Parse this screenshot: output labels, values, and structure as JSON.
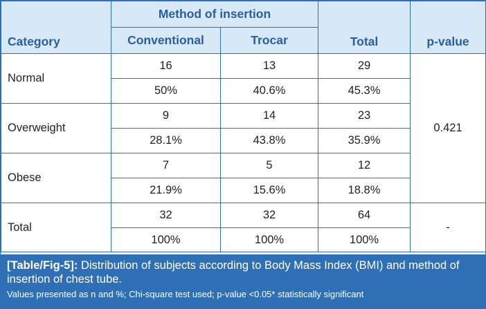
{
  "table": {
    "headers": {
      "category": "Category",
      "method_group": "Method of insertion",
      "conventional": "Conventional",
      "trocar": "Trocar",
      "total": "Total",
      "p_value": "p-value"
    },
    "rows": [
      {
        "category": "Normal",
        "n": [
          "16",
          "13",
          "29"
        ],
        "pct": [
          "50%",
          "40.6%",
          "45.3%"
        ]
      },
      {
        "category": "Overweight",
        "n": [
          "9",
          "14",
          "23"
        ],
        "pct": [
          "28.1%",
          "43.8%",
          "35.9%"
        ]
      },
      {
        "category": "Obese",
        "n": [
          "7",
          "5",
          "12"
        ],
        "pct": [
          "21.9%",
          "15.6%",
          "18.8%"
        ]
      },
      {
        "category": "Total",
        "n": [
          "32",
          "32",
          "64"
        ],
        "pct": [
          "100%",
          "100%",
          "100%"
        ]
      }
    ],
    "p_value_main": "0.421",
    "p_value_total": "-"
  },
  "caption": {
    "label": "[Table/Fig-5]:",
    "text": " Distribution of subjects according to Body Mass Index (BMI) and method of insertion of chest tube.",
    "footnote": "Values presented as n and %; Chi-square test used; p-value <0.05* statistically significant"
  },
  "colors": {
    "border": "#2f6fb5",
    "header_bg": "#d7e8f7",
    "header_text": "#2a5f9c",
    "caption_bg": "#2f6fb5"
  }
}
